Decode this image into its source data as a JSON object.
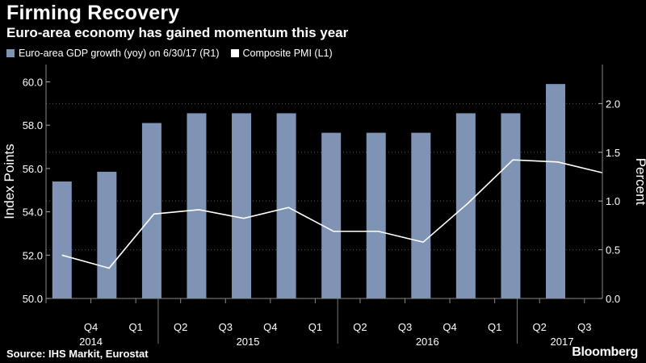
{
  "title": "Firming Recovery",
  "subtitle": "Euro-area economy has gained momentum this year",
  "legend": {
    "bar_label": "Euro-area GDP growth (yoy) on 6/30/17 (R1)",
    "line_label": "Composite PMI (L1)"
  },
  "source": "Source: IHS Markit, Eurostat",
  "brand": "Bloomberg",
  "colors": {
    "bar": "#7f93b5",
    "line": "#ffffff",
    "grid": "#555555",
    "background": "#000000"
  },
  "chart_data": {
    "type": "bar",
    "categories": [
      "Q3 2014",
      "Q4 2014",
      "Q1 2015",
      "Q2 2015",
      "Q3 2015",
      "Q4 2015",
      "Q1 2016",
      "Q2 2016",
      "Q3 2016",
      "Q4 2016",
      "Q1 2017",
      "Q2 2017"
    ],
    "x_tick_labels": [
      "Q4",
      "Q1",
      "Q2",
      "Q3",
      "Q4",
      "Q1",
      "Q2",
      "Q3",
      "Q4",
      "Q1",
      "Q2",
      "Q3"
    ],
    "year_labels": [
      "2014",
      "2015",
      "2016",
      "2017"
    ],
    "series": [
      {
        "name": "Euro-area GDP growth (yoy) on 6/30/17 (R1)",
        "type": "bar",
        "axis": "right",
        "values": [
          1.2,
          1.3,
          1.8,
          1.9,
          1.9,
          1.9,
          1.7,
          1.7,
          1.7,
          1.9,
          1.9,
          2.2
        ]
      },
      {
        "name": "Composite PMI (L1)",
        "type": "line",
        "axis": "left",
        "x": [
          0,
          1.05,
          2.05,
          3.05,
          4.05,
          5.05,
          6.05,
          7.05,
          8.05,
          9.05,
          10.05,
          11.05,
          12.05
        ],
        "values": [
          52.0,
          51.4,
          53.9,
          54.1,
          53.7,
          54.2,
          53.1,
          53.1,
          52.6,
          54.4,
          56.4,
          56.3,
          55.8
        ]
      }
    ],
    "ylabel_left": "Index Points",
    "ylabel_right": "Percent",
    "ylim_left": [
      50.0,
      60.8
    ],
    "yticks_left": [
      "50.0",
      "52.0",
      "54.0",
      "56.0",
      "58.0",
      "60.0"
    ],
    "ylim_right": [
      0.0,
      2.4
    ],
    "yticks_right": [
      "0.0",
      "0.5",
      "1.0",
      "1.5",
      "2.0"
    ],
    "grid": true,
    "legend_position": "top-left"
  }
}
